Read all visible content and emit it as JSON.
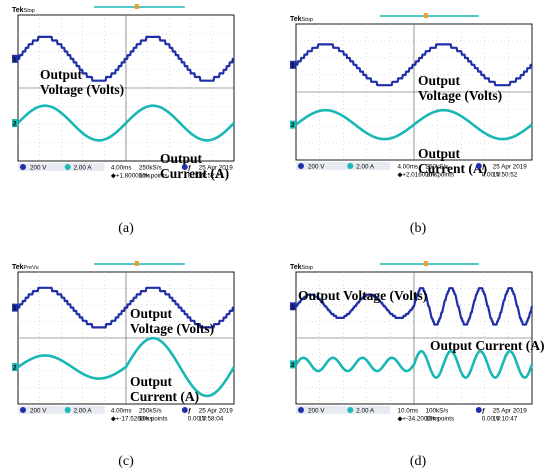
{
  "colors": {
    "voltage": "#1f2fa8",
    "current": "#19b7b5",
    "marker": "#f0a020",
    "grid": "#b9b9b9"
  },
  "panels": [
    {
      "caption": "(a)",
      "brand": "Tek",
      "state": "Stop",
      "ch1_scale": "200 V",
      "ch2_scale": "2.00 A",
      "timebase": "4.00ms",
      "sample_rate": "250kS/s",
      "record": "10k points",
      "trig_offset": "+1.80000ms",
      "trig_level": "0.00 V",
      "date": "25 Apr 2019",
      "time": "15:52:27",
      "label_voltage": [
        "Output",
        "Voltage (Volts)"
      ],
      "label_current": [
        "Output",
        "Current (A)"
      ]
    },
    {
      "caption": "(b)",
      "brand": "Tek",
      "state": "Stop",
      "ch1_scale": "200 V",
      "ch2_scale": "2.00 A",
      "timebase": "4.00ms",
      "sample_rate": "250kS/s",
      "record": "10k points",
      "trig_offset": "+2.01600ms",
      "trig_level": "0.00 V",
      "date": "25 Apr 2019",
      "time": "15:50:52",
      "label_voltage": [
        "Output",
        "Voltage (Volts)"
      ],
      "label_current": [
        "Output",
        "Current (A)"
      ]
    },
    {
      "caption": "(c)",
      "brand": "Tek",
      "state": "PreVu",
      "ch1_scale": "200 V",
      "ch2_scale": "2.00 A",
      "timebase": "4.00ms",
      "sample_rate": "250kS/s",
      "record": "10k points",
      "trig_offset": "+-17.5260ms",
      "trig_level": "0.00 V",
      "date": "25 Apr 2019",
      "time": "15:58:04",
      "label_voltage": [
        "Output",
        "Voltage (Volts)"
      ],
      "label_current": [
        "Output",
        "Current (A)"
      ]
    },
    {
      "caption": "(d)",
      "brand": "Tek",
      "state": "Stop",
      "ch1_scale": "200 V",
      "ch2_scale": "2.00 A",
      "timebase": "10.0ms",
      "sample_rate": "100kS/s",
      "record": "10k points",
      "trig_offset": "+-34.2000ms",
      "trig_level": "0.00 V",
      "date": "25 Apr 2019",
      "time": "16:10:47",
      "label_voltage": [
        "Output Voltage (Volts)"
      ],
      "label_current": [
        "Output Current (A)"
      ]
    }
  ],
  "chart_data": [
    {
      "type": "line",
      "panel": "a",
      "series": [
        {
          "name": "Output Voltage (Volts)",
          "channel": 1,
          "segments": [
            {
              "t_ms": [
                0,
                40
              ],
              "cycles": 2,
              "amplitude_div": 1.2,
              "stepped": true
            }
          ]
        },
        {
          "name": "Output Current (A)",
          "channel": 2,
          "segments": [
            {
              "t_ms": [
                0,
                40
              ],
              "cycles": 2,
              "amplitude_div": 0.95,
              "stepped": false
            }
          ]
        }
      ]
    },
    {
      "type": "line",
      "panel": "b",
      "series": [
        {
          "name": "Output Voltage (Volts)",
          "channel": 1,
          "segments": [
            {
              "t_ms": [
                0,
                40
              ],
              "cycles": 2,
              "amplitude_div": 1.2,
              "stepped": true
            }
          ]
        },
        {
          "name": "Output Current (A)",
          "channel": 2,
          "segments": [
            {
              "t_ms": [
                0,
                40
              ],
              "cycles": 2,
              "amplitude_div": 0.85,
              "stepped": false
            }
          ]
        }
      ]
    },
    {
      "type": "line",
      "panel": "c",
      "series": [
        {
          "name": "Output Voltage (Volts)",
          "channel": 1,
          "segments": [
            {
              "t_ms": [
                0,
                40
              ],
              "cycles": 2,
              "amplitude_div": 1.2,
              "stepped": true
            }
          ]
        },
        {
          "name": "Output Current (A)",
          "channel": 2,
          "segments": [
            {
              "t_ms": [
                0,
                20
              ],
              "cycles": 1,
              "amplitude_div": 0.7,
              "stepped": false
            },
            {
              "t_ms": [
                20,
                40
              ],
              "cycles": 1,
              "amplitude_div": 1.75,
              "stepped": false
            }
          ]
        }
      ]
    },
    {
      "type": "line",
      "panel": "d",
      "series": [
        {
          "name": "Output Voltage (Volts)",
          "channel": 1,
          "segments": [
            {
              "t_ms": [
                0,
                50
              ],
              "cycles": 2,
              "amplitude_div": 0.7,
              "stepped": true
            },
            {
              "t_ms": [
                50,
                100
              ],
              "cycles": 4,
              "amplitude_div": 1.1,
              "stepped": true
            }
          ]
        },
        {
          "name": "Output Current (A)",
          "channel": 2,
          "segments": [
            {
              "t_ms": [
                0,
                50
              ],
              "cycles": 4,
              "amplitude_div": 0.4,
              "stepped": false
            },
            {
              "t_ms": [
                50,
                100
              ],
              "cycles": 4,
              "amplitude_div": 0.8,
              "stepped": false
            }
          ]
        }
      ]
    }
  ]
}
